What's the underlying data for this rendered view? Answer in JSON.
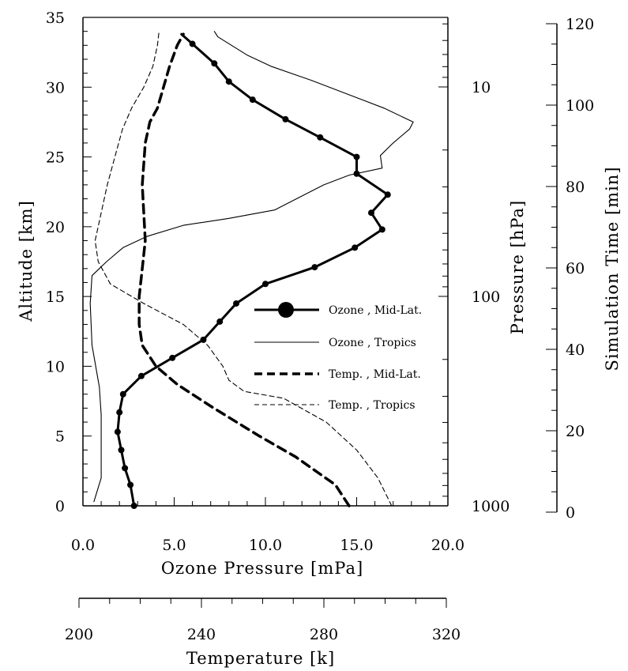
{
  "chart_data": {
    "type": "line",
    "axes": {
      "altitude": {
        "label": "Altitude [km]",
        "range": [
          0,
          35
        ],
        "ticks": [
          0,
          5,
          10,
          15,
          20,
          25,
          30,
          35
        ],
        "tick_labels": [
          "0",
          "5",
          "10",
          "15",
          "20",
          "25",
          "30",
          "35"
        ]
      },
      "ozone": {
        "label": "Ozone Pressure [mPa]",
        "range": [
          0,
          20
        ],
        "ticks": [
          0,
          5,
          10,
          15,
          20
        ],
        "tick_labels": [
          "0.0",
          "5.0",
          "10.0",
          "15.0",
          "20.0"
        ]
      },
      "temperature": {
        "label": "Temperature [k]",
        "range": [
          200,
          320
        ],
        "ticks": [
          200,
          240,
          280,
          320
        ],
        "tick_labels": [
          "200",
          "240",
          "280",
          "320"
        ]
      },
      "pressure": {
        "label": "Pressure [hPa]",
        "scale": "log",
        "ticks": [
          10,
          100,
          1000
        ],
        "tick_labels": [
          "10",
          "100",
          "1000"
        ]
      },
      "simulation_time": {
        "label": "Simulation Time [min]",
        "range": [
          0,
          120
        ],
        "ticks": [
          0,
          20,
          40,
          60,
          80,
          100,
          120
        ],
        "tick_labels": [
          "0",
          "20",
          "40",
          "60",
          "80",
          "100",
          "120"
        ]
      }
    },
    "series": [
      {
        "name": "Ozone , Mid-Lat.",
        "axis_x": "ozone",
        "style": "thick solid with dots",
        "color": "#000000",
        "points": [
          [
            2.8,
            0
          ],
          [
            2.6,
            1.5
          ],
          [
            2.3,
            2.7
          ],
          [
            2.1,
            4.0
          ],
          [
            1.9,
            5.3
          ],
          [
            2.0,
            6.7
          ],
          [
            2.2,
            8.0
          ],
          [
            3.2,
            9.3
          ],
          [
            4.9,
            10.6
          ],
          [
            6.6,
            11.9
          ],
          [
            7.5,
            13.2
          ],
          [
            8.4,
            14.5
          ],
          [
            10.0,
            15.9
          ],
          [
            12.7,
            17.1
          ],
          [
            14.9,
            18.5
          ],
          [
            16.4,
            19.8
          ],
          [
            15.8,
            21.0
          ],
          [
            16.7,
            22.3
          ],
          [
            15.0,
            23.8
          ],
          [
            15.0,
            25.0
          ],
          [
            13.0,
            26.4
          ],
          [
            11.1,
            27.7
          ],
          [
            9.3,
            29.1
          ],
          [
            8.0,
            30.4
          ],
          [
            7.2,
            31.7
          ],
          [
            6.0,
            33.1
          ],
          [
            5.4,
            33.8
          ]
        ]
      },
      {
        "name": "Ozone , Tropics",
        "axis_x": "ozone",
        "style": "thin solid",
        "color": "#000000",
        "points": [
          [
            0.6,
            0.3
          ],
          [
            1.0,
            2.0
          ],
          [
            1.0,
            4.0
          ],
          [
            1.0,
            6.5
          ],
          [
            0.9,
            8.5
          ],
          [
            0.5,
            11.5
          ],
          [
            0.4,
            14.5
          ],
          [
            0.5,
            16.5
          ],
          [
            1.3,
            17.5
          ],
          [
            2.2,
            18.5
          ],
          [
            3.5,
            19.3
          ],
          [
            5.5,
            20.1
          ],
          [
            8.0,
            20.6
          ],
          [
            10.5,
            21.2
          ],
          [
            12.0,
            22.2
          ],
          [
            13.2,
            23.0
          ],
          [
            14.6,
            23.7
          ],
          [
            16.4,
            24.2
          ],
          [
            16.3,
            25.1
          ],
          [
            17.0,
            26.0
          ],
          [
            17.9,
            27.0
          ],
          [
            18.1,
            27.5
          ],
          [
            16.5,
            28.5
          ],
          [
            14.5,
            29.5
          ],
          [
            12.5,
            30.5
          ],
          [
            10.3,
            31.5
          ],
          [
            9.0,
            32.3
          ],
          [
            7.4,
            33.6
          ],
          [
            7.2,
            34.0
          ]
        ]
      },
      {
        "name": "Temp. , Mid-Lat.",
        "axis_x": "temperature",
        "style": "thick dashed",
        "color": "#000000",
        "points": [
          [
            287.5,
            0
          ],
          [
            283,
            1.5
          ],
          [
            270,
            3.5
          ],
          [
            258,
            5.0
          ],
          [
            243,
            7.0
          ],
          [
            231,
            8.7
          ],
          [
            224,
            10.0
          ],
          [
            219.5,
            11.5
          ],
          [
            218.5,
            13.0
          ],
          [
            218.5,
            15.0
          ],
          [
            219.5,
            17.0
          ],
          [
            220.5,
            19.0
          ],
          [
            220,
            21.0
          ],
          [
            219.5,
            23.0
          ],
          [
            220.5,
            26.0
          ],
          [
            222,
            27.5
          ],
          [
            224.5,
            28.5
          ],
          [
            226.5,
            30.0
          ],
          [
            228.5,
            31.5
          ],
          [
            231,
            33.0
          ],
          [
            233,
            33.8
          ]
        ]
      },
      {
        "name": "Temp. , Tropics",
        "axis_x": "temperature",
        "style": "thin dashed",
        "color": "#000000",
        "points": [
          [
            301.5,
            0
          ],
          [
            297,
            2.0
          ],
          [
            290,
            4.0
          ],
          [
            280,
            6.0
          ],
          [
            266,
            7.7
          ],
          [
            253,
            8.2
          ],
          [
            248,
            9.0
          ],
          [
            246,
            10.0
          ],
          [
            241,
            11.5
          ],
          [
            233,
            13.0
          ],
          [
            220,
            14.5
          ],
          [
            209,
            15.9
          ],
          [
            205,
            17.5
          ],
          [
            204,
            19.0
          ],
          [
            205.5,
            20.5
          ],
          [
            208,
            23.0
          ],
          [
            210.5,
            25.0
          ],
          [
            213,
            27.0
          ],
          [
            216,
            28.5
          ],
          [
            220,
            30.0
          ],
          [
            223,
            31.5
          ],
          [
            224.5,
            33.0
          ],
          [
            225,
            34.0
          ]
        ]
      }
    ]
  }
}
